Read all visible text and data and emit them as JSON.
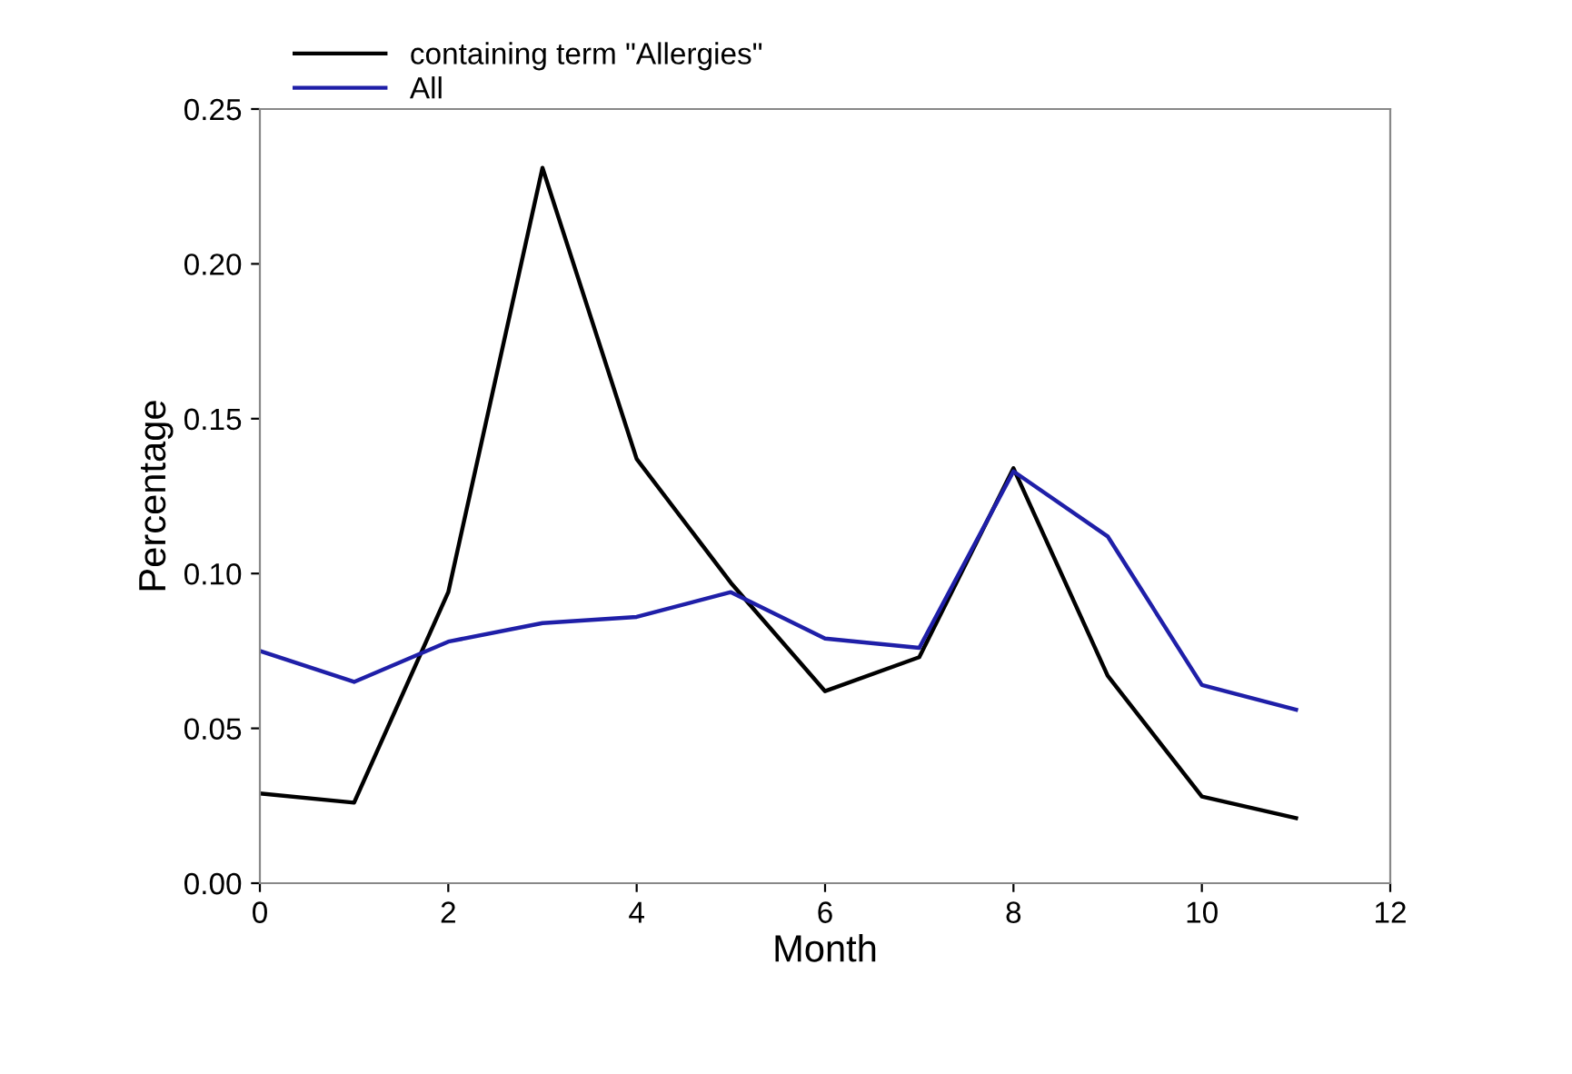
{
  "chart_data": {
    "type": "line",
    "xlabel": "Month",
    "ylabel": "Percentage",
    "x": [
      0,
      1,
      2,
      3,
      4,
      5,
      6,
      7,
      8,
      9,
      10,
      11
    ],
    "series": [
      {
        "name": "containing term \"Allergies\"",
        "color": "#000000",
        "values": [
          0.029,
          0.026,
          0.094,
          0.231,
          0.137,
          0.097,
          0.062,
          0.073,
          0.134,
          0.067,
          0.028,
          0.021
        ]
      },
      {
        "name": "All",
        "color": "#1f1fa8",
        "values": [
          0.075,
          0.065,
          0.078,
          0.084,
          0.086,
          0.094,
          0.079,
          0.076,
          0.133,
          0.112,
          0.064,
          0.056
        ]
      }
    ],
    "xlim": [
      0,
      12
    ],
    "xticks": [
      0,
      2,
      4,
      6,
      8,
      10,
      12
    ],
    "ylim": [
      0,
      0.25
    ],
    "yticks": [
      {
        "value": 0,
        "label": "0.00"
      },
      {
        "value": 0.05,
        "label": "0.05"
      },
      {
        "value": 0.1,
        "label": "0.10"
      },
      {
        "value": 0.15,
        "label": "0.15"
      },
      {
        "value": 0.2,
        "label": "0.20"
      },
      {
        "value": 0.25,
        "label": "0.25"
      }
    ],
    "grid": false,
    "legend": "top left",
    "marker": "none",
    "line_style": "solid"
  }
}
